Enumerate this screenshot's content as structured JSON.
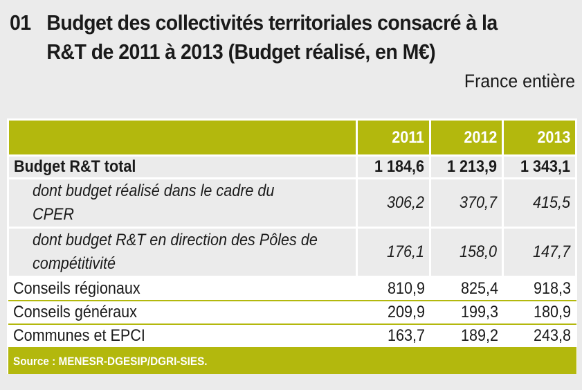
{
  "title": {
    "number": "01",
    "line1": "Budget des collectivités territoriales consacré à la",
    "line2": "R&T de 2011 à 2013 (Budget réalisé, en M€)"
  },
  "scope": "France entière",
  "table": {
    "columns": [
      "",
      "2011",
      "2012",
      "2013"
    ],
    "rows": [
      {
        "label": "Budget R&T total",
        "values": [
          "1 184,6",
          "1 213,9",
          "1 343,1"
        ]
      },
      {
        "label": "dont budget réalisé dans le cadre du CPER",
        "values": [
          "306,2",
          "370,7",
          "415,5"
        ]
      },
      {
        "label": "dont budget R&T en direction des Pôles de compétitivité",
        "values": [
          "176,1",
          "158,0",
          "147,7"
        ]
      },
      {
        "label": "Conseils régionaux",
        "values": [
          "810,9",
          "825,4",
          "918,3"
        ]
      },
      {
        "label": "Conseils généraux",
        "values": [
          "209,9",
          "199,3",
          "180,9"
        ]
      },
      {
        "label": "Communes et EPCI",
        "values": [
          "163,7",
          "189,2",
          "243,8"
        ]
      }
    ],
    "source": "Source : MENESR-DGESIP/DGRI-SIES."
  },
  "colors": {
    "accent": "#b3b80d",
    "background": "#ebebeb",
    "cell_grey": "#ebebeb",
    "cell_white": "#ffffff"
  }
}
